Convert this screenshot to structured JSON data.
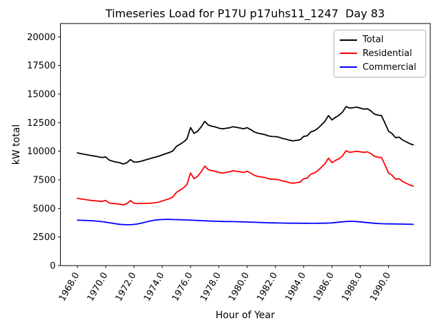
{
  "title": "Timeseries Load for P17U p17uhs11_1247  Day 83",
  "xlabel": "Hour of Year",
  "ylabel": "kW total",
  "legend": {
    "position": "upper right",
    "entries": [
      {
        "label": "Total",
        "color": "#000000"
      },
      {
        "label": "Residential",
        "color": "#ff0000"
      },
      {
        "label": "Commercial",
        "color": "#0000ff"
      }
    ]
  },
  "chart_data": {
    "type": "line",
    "title": "Timeseries Load for P17U p17uhs11_1247  Day 83",
    "xlabel": "Hour of Year",
    "ylabel": "kW total",
    "grid": false,
    "xlim": [
      1966.8,
      1992.95
    ],
    "ylim": [
      0,
      21170
    ],
    "xticks": [
      1968,
      1970,
      1972,
      1974,
      1976,
      1978,
      1980,
      1982,
      1984,
      1986,
      1988,
      1990
    ],
    "xtick_labels": [
      "1968.0",
      "1970.0",
      "1972.0",
      "1974.0",
      "1976.0",
      "1978.0",
      "1980.0",
      "1982.0",
      "1984.0",
      "1986.0",
      "1988.0",
      "1990.0"
    ],
    "yticks": [
      0,
      2500,
      5000,
      7500,
      10000,
      12500,
      15000,
      17500,
      20000
    ],
    "ytick_labels": [
      "0",
      "2500",
      "5000",
      "7500",
      "10000",
      "12500",
      "15000",
      "17500",
      "20000"
    ],
    "x_tick_rotation": 60,
    "x": [
      1968.0,
      1968.25,
      1968.5,
      1968.75,
      1969.0,
      1969.25,
      1969.5,
      1969.75,
      1970.0,
      1970.25,
      1970.5,
      1970.75,
      1971.0,
      1971.25,
      1971.5,
      1971.75,
      1972.0,
      1972.25,
      1972.5,
      1972.75,
      1973.0,
      1973.25,
      1973.5,
      1973.75,
      1974.0,
      1974.25,
      1974.5,
      1974.75,
      1975.0,
      1975.25,
      1975.5,
      1975.75,
      1976.0,
      1976.25,
      1976.5,
      1976.75,
      1977.0,
      1977.25,
      1977.5,
      1977.75,
      1978.0,
      1978.25,
      1978.5,
      1978.75,
      1979.0,
      1979.25,
      1979.5,
      1979.75,
      1980.0,
      1980.25,
      1980.5,
      1980.75,
      1981.0,
      1981.25,
      1981.5,
      1981.75,
      1982.0,
      1982.25,
      1982.5,
      1982.75,
      1983.0,
      1983.25,
      1983.5,
      1983.75,
      1984.0,
      1984.25,
      1984.5,
      1984.75,
      1985.0,
      1985.25,
      1985.5,
      1985.75,
      1986.0,
      1986.25,
      1986.5,
      1986.75,
      1987.0,
      1987.25,
      1987.5,
      1987.75,
      1988.0,
      1988.25,
      1988.5,
      1988.75,
      1989.0,
      1989.25,
      1989.5,
      1989.75,
      1990.0,
      1990.25,
      1990.5,
      1990.75,
      1991.0,
      1991.25,
      1991.5,
      1991.75
    ],
    "series": [
      {
        "name": "Total",
        "color": "#000000",
        "values": [
          9860,
          9790,
          9730,
          9680,
          9620,
          9570,
          9510,
          9450,
          9500,
          9230,
          9130,
          9050,
          8990,
          8885,
          8995,
          9270,
          9050,
          9060,
          9130,
          9220,
          9310,
          9400,
          9480,
          9560,
          9680,
          9790,
          9890,
          10030,
          10420,
          10610,
          10800,
          11090,
          12075,
          11560,
          11745,
          12130,
          12615,
          12300,
          12190,
          12130,
          12020,
          11960,
          12005,
          12050,
          12145,
          12090,
          12030,
          11970,
          12060,
          11900,
          11690,
          11580,
          11520,
          11455,
          11345,
          11285,
          11280,
          11225,
          11120,
          11065,
          10960,
          10910,
          10955,
          11000,
          11300,
          11350,
          11695,
          11795,
          12000,
          12305,
          12610,
          13120,
          12740,
          12970,
          13150,
          13430,
          13905,
          13770,
          13815,
          13850,
          13770,
          13690,
          13710,
          13530,
          13250,
          13160,
          13115,
          12455,
          11750,
          11545,
          11190,
          11235,
          10980,
          10825,
          10665,
          10555
        ]
      },
      {
        "name": "Residential",
        "color": "#ff0000",
        "values": [
          5890,
          5830,
          5780,
          5740,
          5700,
          5670,
          5640,
          5610,
          5700,
          5480,
          5430,
          5400,
          5380,
          5300,
          5420,
          5690,
          5450,
          5420,
          5430,
          5440,
          5450,
          5470,
          5500,
          5550,
          5650,
          5750,
          5850,
          6000,
          6400,
          6600,
          6800,
          7100,
          8100,
          7600,
          7800,
          8200,
          8700,
          8400,
          8300,
          8250,
          8150,
          8100,
          8150,
          8200,
          8300,
          8250,
          8200,
          8150,
          8250,
          8100,
          7900,
          7800,
          7750,
          7700,
          7600,
          7550,
          7550,
          7500,
          7400,
          7350,
          7250,
          7200,
          7250,
          7300,
          7600,
          7650,
          8000,
          8100,
          8300,
          8600,
          8900,
          9400,
          9000,
          9200,
          9350,
          9600,
          10050,
          9900,
          9950,
          10000,
          9950,
          9900,
          9950,
          9800,
          9550,
          9480,
          9450,
          8800,
          8100,
          7900,
          7550,
          7600,
          7350,
          7200,
          7050,
          6950
        ]
      },
      {
        "name": "Commercial",
        "color": "#0000ff",
        "values": [
          3970,
          3960,
          3950,
          3940,
          3920,
          3900,
          3870,
          3840,
          3800,
          3750,
          3700,
          3650,
          3610,
          3585,
          3575,
          3580,
          3600,
          3640,
          3700,
          3780,
          3860,
          3930,
          3980,
          4010,
          4030,
          4040,
          4040,
          4030,
          4020,
          4010,
          4000,
          3990,
          3975,
          3960,
          3945,
          3930,
          3915,
          3900,
          3890,
          3880,
          3870,
          3860,
          3855,
          3850,
          3845,
          3840,
          3830,
          3820,
          3810,
          3800,
          3790,
          3780,
          3770,
          3755,
          3745,
          3735,
          3730,
          3725,
          3720,
          3715,
          3710,
          3710,
          3705,
          3700,
          3700,
          3700,
          3695,
          3695,
          3700,
          3705,
          3710,
          3720,
          3740,
          3770,
          3800,
          3830,
          3855,
          3870,
          3865,
          3850,
          3820,
          3790,
          3760,
          3730,
          3700,
          3680,
          3665,
          3655,
          3650,
          3645,
          3640,
          3635,
          3630,
          3625,
          3615,
          3605
        ]
      }
    ]
  }
}
